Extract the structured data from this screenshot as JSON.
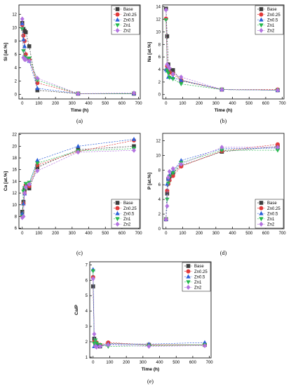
{
  "figure": {
    "panel_labels": [
      "(a)",
      "(b)",
      "(c)",
      "(d)",
      "(e)"
    ]
  },
  "legend_entries": [
    "Base",
    "Zn0.25",
    "Zn0.5",
    "Zn1",
    "Zn2"
  ],
  "series_styles": [
    {
      "name": "Base",
      "color": "#3d3d3d",
      "marker": "square"
    },
    {
      "name": "Zn0.25",
      "color": "#e23a3a",
      "marker": "circle"
    },
    {
      "name": "Zn0.5",
      "color": "#2b5fd9",
      "marker": "triangle-up"
    },
    {
      "name": "Zn1",
      "color": "#25b94c",
      "marker": "triangle-down"
    },
    {
      "name": "Zn2",
      "color": "#b373e0",
      "marker": "diamond"
    }
  ],
  "chart_data": [
    {
      "panel": "(a)",
      "type": "line",
      "xlabel": "Time (h)",
      "ylabel": "Si [at.%]",
      "xlim": [
        -20,
        710
      ],
      "ylim": [
        -0.7,
        13.4
      ],
      "xticks": [
        0,
        100,
        200,
        300,
        400,
        500,
        600,
        700
      ],
      "yticks": [
        0,
        2,
        4,
        6,
        8,
        10,
        12
      ],
      "legend_position": "top-right",
      "x": [
        0,
        7,
        14,
        21,
        42,
        91,
        336,
        672
      ],
      "series": [
        {
          "name": "Base",
          "values": [
            10.7,
            9.8,
            9.5,
            9.3,
            7.2,
            0.6,
            0.1,
            0.1
          ]
        },
        {
          "name": "Zn0.25",
          "values": [
            10.4,
            8.8,
            8.0,
            6.0,
            5.2,
            1.7,
            0.1,
            0.1
          ]
        },
        {
          "name": "Zn0.5",
          "values": [
            10.6,
            8.2,
            7.2,
            5.5,
            5.0,
            0.9,
            0.1,
            0.1
          ]
        },
        {
          "name": "Zn1",
          "values": [
            9.8,
            6.5,
            5.6,
            5.3,
            5.4,
            2.1,
            0.1,
            0.1
          ]
        },
        {
          "name": "Zn2",
          "values": [
            11.3,
            5.5,
            5.2,
            5.2,
            5.0,
            2.4,
            0.1,
            0.2
          ]
        }
      ]
    },
    {
      "panel": "(b)",
      "type": "line",
      "xlabel": "Time (h)",
      "ylabel": "Na [at.%]",
      "xlim": [
        -20,
        710
      ],
      "ylim": [
        -0.7,
        14.3
      ],
      "xticks": [
        0,
        100,
        200,
        300,
        400,
        500,
        600,
        700
      ],
      "yticks": [
        0,
        2,
        4,
        6,
        8,
        10,
        12,
        14
      ],
      "legend_position": "top-right",
      "x": [
        0,
        7,
        14,
        21,
        42,
        91,
        336,
        672
      ],
      "series": [
        {
          "name": "Base",
          "values": [
            13.7,
            9.3,
            4.8,
            4.0,
            3.9,
            2.2,
            0.8,
            0.7
          ]
        },
        {
          "name": "Zn0.25",
          "values": [
            12.1,
            4.5,
            3.9,
            3.5,
            3.3,
            2.3,
            0.8,
            0.8
          ]
        },
        {
          "name": "Zn0.5",
          "values": [
            4.0,
            3.8,
            2.8,
            2.8,
            2.7,
            2.3,
            0.8,
            0.7
          ]
        },
        {
          "name": "Zn1",
          "values": [
            11.9,
            3.8,
            3.4,
            2.7,
            2.5,
            1.7,
            0.8,
            0.7
          ]
        },
        {
          "name": "Zn2",
          "values": [
            13.5,
            4.8,
            4.5,
            4.2,
            3.3,
            2.8,
            0.8,
            0.7
          ]
        }
      ]
    },
    {
      "panel": "(c)",
      "type": "line",
      "xlabel": "",
      "ylabel": "Ca [at.%]",
      "xlim": [
        -20,
        710
      ],
      "ylim": [
        5.9,
        22.2
      ],
      "xticks": [
        0,
        100,
        200,
        300,
        400,
        500,
        600,
        700
      ],
      "yticks": [
        6,
        8,
        10,
        12,
        14,
        16,
        18,
        20,
        22
      ],
      "legend_position": "bottom-right",
      "x": [
        0,
        7,
        14,
        21,
        42,
        91,
        336,
        672
      ],
      "series": [
        {
          "name": "Base",
          "values": [
            8.8,
            10.5,
            12.6,
            13.2,
            12.8,
            16.4,
            19.4,
            20.0
          ]
        },
        {
          "name": "Zn0.25",
          "values": [
            8.2,
            10.2,
            12.0,
            13.3,
            13.2,
            16.8,
            19.1,
            21.0
          ]
        },
        {
          "name": "Zn0.5",
          "values": [
            8.5,
            10.2,
            11.9,
            13.2,
            13.6,
            17.6,
            20.0,
            21.2
          ]
        },
        {
          "name": "Zn1",
          "values": [
            8.0,
            12.3,
            12.9,
            13.6,
            13.8,
            17.1,
            19.2,
            19.6
          ]
        },
        {
          "name": "Zn2",
          "values": [
            7.8,
            8.0,
            12.0,
            13.0,
            13.5,
            15.8,
            19.0,
            19.3
          ]
        }
      ]
    },
    {
      "panel": "(d)",
      "type": "line",
      "xlabel": "",
      "ylabel": "P [at.%]",
      "xlim": [
        -20,
        710
      ],
      "ylim": [
        0,
        13
      ],
      "xticks": [
        0,
        100,
        200,
        300,
        400,
        500,
        600,
        700
      ],
      "yticks": [
        0,
        2,
        4,
        6,
        8,
        10,
        12
      ],
      "legend_position": "bottom-right",
      "x": [
        0,
        7,
        14,
        21,
        42,
        91,
        336,
        672
      ],
      "series": [
        {
          "name": "Base",
          "values": [
            1.3,
            4.8,
            6.8,
            7.1,
            7.6,
            8.6,
            10.5,
            11.2
          ]
        },
        {
          "name": "Zn0.25",
          "values": [
            1.3,
            5.2,
            6.1,
            6.6,
            7.2,
            8.5,
            10.6,
            11.5
          ]
        },
        {
          "name": "Zn0.5",
          "values": [
            1.3,
            6.1,
            6.8,
            7.3,
            7.8,
            9.3,
            10.9,
            11.0
          ]
        },
        {
          "name": "Zn1",
          "values": [
            1.3,
            4.0,
            6.2,
            7.1,
            7.6,
            9.0,
            10.7,
            10.7
          ]
        },
        {
          "name": "Zn2",
          "values": [
            1.3,
            3.1,
            7.0,
            7.8,
            8.2,
            8.8,
            11.1,
            11.1
          ]
        }
      ]
    },
    {
      "panel": "(e)",
      "type": "line",
      "xlabel": "Time (h)",
      "ylabel": "Ca/P",
      "xlim": [
        -20,
        710
      ],
      "ylim": [
        0.95,
        7.2
      ],
      "xticks": [
        0,
        100,
        200,
        300,
        400,
        500,
        600,
        700
      ],
      "yticks": [
        1,
        2,
        3,
        4,
        5,
        6,
        7
      ],
      "legend_position": "top-right",
      "x": [
        0,
        7,
        14,
        21,
        42,
        91,
        336,
        672
      ],
      "series": [
        {
          "name": "Base",
          "values": [
            5.6,
            2.2,
            1.9,
            1.85,
            1.7,
            1.9,
            1.8,
            1.8
          ]
        },
        {
          "name": "Zn0.25",
          "values": [
            6.2,
            2.0,
            1.9,
            1.95,
            1.8,
            1.95,
            1.8,
            1.8
          ]
        },
        {
          "name": "Zn0.5",
          "values": [
            6.7,
            1.7,
            1.75,
            1.8,
            1.75,
            1.85,
            1.85,
            1.95
          ]
        },
        {
          "name": "Zn1",
          "values": [
            6.6,
            1.9,
            2.1,
            1.9,
            1.8,
            1.7,
            1.75,
            1.8
          ]
        },
        {
          "name": "Zn2",
          "values": [
            6.1,
            2.5,
            1.7,
            1.65,
            1.7,
            1.8,
            1.7,
            1.75
          ]
        }
      ]
    }
  ]
}
